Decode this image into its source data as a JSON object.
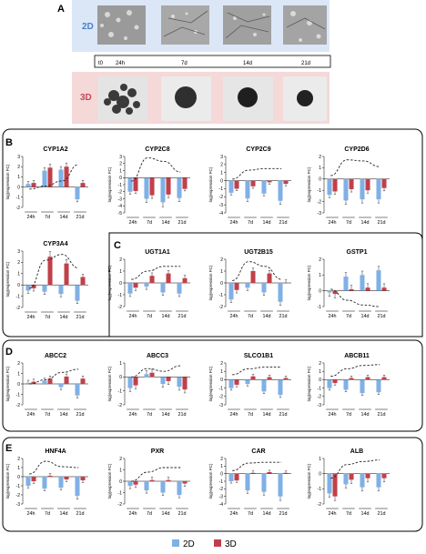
{
  "panel_letters": [
    "A",
    "B",
    "C",
    "D",
    "E"
  ],
  "timeline": {
    "row_2d": "2D",
    "row_3d": "3D",
    "ticks": [
      "t0",
      "24h",
      "7d",
      "14d",
      "21d"
    ]
  },
  "legend": {
    "label_2d": "2D",
    "label_3d": "3D",
    "color_2d": "#7fb0e6",
    "color_3d": "#c0404a"
  },
  "colors": {
    "bar_2d": "#7fb0e6",
    "bar_3d": "#c0404a",
    "band_2d": "#dbe7f7",
    "band_3d": "#f5d8d8",
    "trend": "#222222"
  },
  "chart_data": [
    {
      "type": "bar",
      "title": "CYP1A2",
      "ylabel": "log(expression FC)",
      "ylim": [
        -2,
        3
      ],
      "yticks": [
        -2,
        -1,
        0,
        1,
        2,
        3
      ],
      "categories": [
        "24h",
        "7d",
        "14d",
        "21d"
      ],
      "series": [
        {
          "name": "2D",
          "values": [
            0.3,
            1.6,
            1.7,
            -1.2
          ]
        },
        {
          "name": "3D",
          "values": [
            0.4,
            1.9,
            2.0,
            0.4
          ]
        }
      ],
      "trend": [
        -0.2,
        0.1,
        0.6,
        2.2
      ]
    },
    {
      "type": "bar",
      "title": "CYP2C8",
      "ylabel": "log(expression FC)",
      "ylim": [
        -5,
        3
      ],
      "yticks": [
        -5,
        -4,
        -3,
        -2,
        -1,
        0,
        1,
        2,
        3
      ],
      "categories": [
        "24h",
        "7d",
        "14d",
        "21d"
      ],
      "series": [
        {
          "name": "2D",
          "values": [
            -2.0,
            -3.0,
            -3.5,
            -2.9
          ]
        },
        {
          "name": "3D",
          "values": [
            -1.9,
            -2.5,
            -2.4,
            -1.6
          ]
        }
      ],
      "trend": [
        -0.5,
        2.8,
        2.3,
        0.8
      ]
    },
    {
      "type": "bar",
      "title": "CYP2C9",
      "ylabel": "log(expression FC)",
      "ylim": [
        -4,
        3
      ],
      "yticks": [
        -4,
        -3,
        -2,
        -1,
        0,
        1,
        2,
        3
      ],
      "categories": [
        "24h",
        "7d",
        "14d",
        "21d"
      ],
      "series": [
        {
          "name": "2D",
          "values": [
            -1.5,
            -2.2,
            -1.6,
            -2.5
          ]
        },
        {
          "name": "3D",
          "values": [
            -1.0,
            -0.7,
            -0.2,
            -0.4
          ]
        }
      ],
      "trend": [
        0.2,
        1.3,
        1.5,
        1.5
      ]
    },
    {
      "type": "bar",
      "title": "CYP2D6",
      "ylabel": "log(expression FC)",
      "ylim": [
        -3,
        2
      ],
      "yticks": [
        -3,
        -2,
        -1,
        0,
        1,
        2
      ],
      "categories": [
        "24h",
        "7d",
        "14d",
        "21d"
      ],
      "series": [
        {
          "name": "2D",
          "values": [
            -1.4,
            -1.9,
            -1.8,
            -1.8
          ]
        },
        {
          "name": "3D",
          "values": [
            -1.1,
            -0.9,
            -1.0,
            -0.8
          ]
        }
      ],
      "trend": [
        0.3,
        1.7,
        1.6,
        1.1
      ]
    },
    {
      "type": "bar",
      "title": "CYP3A4",
      "ylabel": "log(expression FC)",
      "ylim": [
        -2,
        3
      ],
      "yticks": [
        -2,
        -1,
        0,
        1,
        2,
        3
      ],
      "categories": [
        "24h",
        "7d",
        "14d",
        "21d"
      ],
      "series": [
        {
          "name": "2D",
          "values": [
            -0.5,
            -0.6,
            -0.8,
            -1.4
          ]
        },
        {
          "name": "3D",
          "values": [
            -0.3,
            2.5,
            1.9,
            0.7
          ]
        }
      ],
      "trend": [
        -0.3,
        2.2,
        2.7,
        1.5
      ]
    },
    {
      "type": "bar",
      "title": "UGT1A1",
      "ylabel": "log(expression FC)",
      "ylim": [
        -2,
        2
      ],
      "yticks": [
        -2,
        -1,
        0,
        1,
        2
      ],
      "categories": [
        "24h",
        "7d",
        "14d",
        "21d"
      ],
      "series": [
        {
          "name": "2D",
          "values": [
            -0.9,
            -0.3,
            -0.8,
            -0.9
          ]
        },
        {
          "name": "3D",
          "values": [
            -0.4,
            0.6,
            0.8,
            0.4
          ]
        }
      ],
      "trend": [
        0.3,
        1.0,
        1.4,
        1.4
      ]
    },
    {
      "type": "bar",
      "title": "UGT2B15",
      "ylabel": "log(expression FC)",
      "ylim": [
        -2,
        2
      ],
      "yticks": [
        -2,
        -1,
        0,
        1,
        2
      ],
      "categories": [
        "24h",
        "7d",
        "14d",
        "21d"
      ],
      "series": [
        {
          "name": "2D",
          "values": [
            -1.4,
            -0.4,
            -0.8,
            -1.6
          ]
        },
        {
          "name": "3D",
          "values": [
            -0.6,
            1.0,
            0.8,
            0.0
          ]
        }
      ],
      "trend": [
        0.2,
        1.8,
        1.4,
        0.3
      ]
    },
    {
      "type": "bar",
      "title": "GSTP1",
      "ylabel": "log(expression FC)",
      "ylim": [
        -1,
        2
      ],
      "yticks": [
        -1,
        0,
        1,
        2
      ],
      "categories": [
        "24h",
        "7d",
        "14d",
        "21d"
      ],
      "series": [
        {
          "name": "2D",
          "values": [
            -0.1,
            0.9,
            1.0,
            1.3
          ]
        },
        {
          "name": "3D",
          "values": [
            -0.2,
            0.1,
            0.2,
            0.2
          ]
        }
      ],
      "trend": [
        0.1,
        -0.6,
        -0.9,
        -1.0
      ]
    },
    {
      "type": "bar",
      "title": "ABCC2",
      "ylabel": "log(expression FC)",
      "ylim": [
        -2,
        2
      ],
      "yticks": [
        -2,
        -1,
        0,
        1,
        2
      ],
      "categories": [
        "24h",
        "7d",
        "14d",
        "21d"
      ],
      "series": [
        {
          "name": "2D",
          "values": [
            0.1,
            0.3,
            -0.3,
            -1.1
          ]
        },
        {
          "name": "3D",
          "values": [
            0.2,
            0.5,
            0.7,
            0.5
          ]
        }
      ],
      "trend": [
        0.0,
        0.4,
        1.1,
        1.4
      ]
    },
    {
      "type": "bar",
      "title": "ABCC3",
      "ylabel": "log(expression FC)",
      "ylim": [
        -2,
        1
      ],
      "yticks": [
        -2,
        -1,
        0,
        1
      ],
      "categories": [
        "24h",
        "7d",
        "14d",
        "21d"
      ],
      "series": [
        {
          "name": "2D",
          "values": [
            -0.8,
            0.2,
            -0.5,
            -0.7
          ]
        },
        {
          "name": "3D",
          "values": [
            -0.6,
            0.3,
            -0.3,
            -0.9
          ]
        }
      ],
      "trend": [
        0.0,
        0.6,
        0.4,
        0.8
      ]
    },
    {
      "type": "bar",
      "title": "SLCO1B1",
      "ylabel": "log(expression FC)",
      "ylim": [
        -3,
        2
      ],
      "yticks": [
        -3,
        -2,
        -1,
        0,
        1,
        2
      ],
      "categories": [
        "24h",
        "7d",
        "14d",
        "21d"
      ],
      "series": [
        {
          "name": "2D",
          "values": [
            -1.0,
            -0.5,
            -1.4,
            -1.8
          ]
        },
        {
          "name": "3D",
          "values": [
            -0.6,
            0.4,
            0.3,
            0.2
          ]
        }
      ],
      "trend": [
        0.6,
        1.3,
        1.5,
        1.5
      ]
    },
    {
      "type": "bar",
      "title": "ABCB11",
      "ylabel": "log(expression FC)",
      "ylim": [
        -3,
        2
      ],
      "yticks": [
        -3,
        -2,
        -1,
        0,
        1,
        2
      ],
      "categories": [
        "24h",
        "7d",
        "14d",
        "21d"
      ],
      "series": [
        {
          "name": "2D",
          "values": [
            -1.0,
            -1.2,
            -1.6,
            -1.5
          ]
        },
        {
          "name": "3D",
          "values": [
            -0.4,
            0.2,
            0.3,
            0.3
          ]
        }
      ],
      "trend": [
        0.4,
        1.3,
        1.7,
        1.8
      ]
    },
    {
      "type": "bar",
      "title": "HNF4A",
      "ylabel": "log(expression FC)",
      "ylim": [
        -3,
        2
      ],
      "yticks": [
        -3,
        -2,
        -1,
        0,
        1,
        2
      ],
      "categories": [
        "24h",
        "7d",
        "14d",
        "21d"
      ],
      "series": [
        {
          "name": "2D",
          "values": [
            -1.0,
            -1.3,
            -1.2,
            -2.1
          ]
        },
        {
          "name": "3D",
          "values": [
            -0.5,
            0.1,
            -0.3,
            -0.4
          ]
        }
      ],
      "trend": [
        0.3,
        1.7,
        1.1,
        1.0
      ]
    },
    {
      "type": "bar",
      "title": "PXR",
      "ylabel": "log(expression FC)",
      "ylim": [
        -2,
        2
      ],
      "yticks": [
        -2,
        -1,
        0,
        1,
        2
      ],
      "categories": [
        "24h",
        "7d",
        "14d",
        "21d"
      ],
      "series": [
        {
          "name": "2D",
          "values": [
            -0.4,
            -0.8,
            -1.0,
            -1.2
          ]
        },
        {
          "name": "3D",
          "values": [
            -0.3,
            0.1,
            0.1,
            -0.2
          ]
        }
      ],
      "trend": [
        0.0,
        0.8,
        1.2,
        1.2
      ]
    },
    {
      "type": "bar",
      "title": "CAR",
      "ylabel": "log(expression FC)",
      "ylim": [
        -4,
        2
      ],
      "yticks": [
        -4,
        -3,
        -2,
        -1,
        0,
        1,
        2
      ],
      "categories": [
        "24h",
        "7d",
        "14d",
        "21d"
      ],
      "series": [
        {
          "name": "2D",
          "values": [
            -1.0,
            -2.2,
            -2.4,
            -3.0
          ]
        },
        {
          "name": "3D",
          "values": [
            -0.9,
            0.1,
            0.2,
            0.1
          ]
        }
      ],
      "trend": [
        0.4,
        1.4,
        1.5,
        1.5
      ]
    },
    {
      "type": "bar",
      "title": "ALB",
      "ylabel": "log(expression FC)",
      "ylim": [
        -2,
        1
      ],
      "yticks": [
        -2,
        -1,
        0,
        1
      ],
      "categories": [
        "24h",
        "7d",
        "14d",
        "21d"
      ],
      "series": [
        {
          "name": "2D",
          "values": [
            -1.3,
            -0.7,
            -0.9,
            -0.9
          ]
        },
        {
          "name": "3D",
          "values": [
            -1.5,
            -0.4,
            -0.3,
            -0.3
          ]
        }
      ],
      "trend": [
        -0.3,
        0.6,
        0.8,
        0.9
      ]
    }
  ]
}
